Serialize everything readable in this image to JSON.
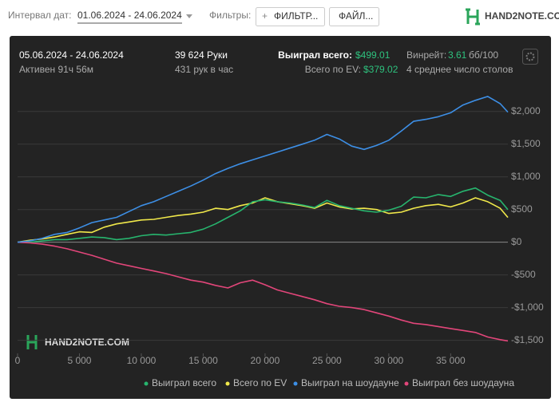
{
  "toolbar": {
    "date_label": "Интервал дат:",
    "date_range": "01.06.2024 - 24.06.2024",
    "filters_label": "Фильтры:",
    "filter_button": "ФИЛЬТР...",
    "file_button": "ФАЙЛ...",
    "logo": "HAND2NOTE.COM"
  },
  "summary": {
    "period": "05.06.2024 - 24.06.2024",
    "active": "Активен 91ч 56м",
    "hands": "39 624 Руки",
    "hands_per_hour": "431 рук в час",
    "won_label": "Выиграл всего:",
    "won_value": "$499.01",
    "ev_label": "Всего по EV:",
    "ev_value": "$379.02",
    "winrate_label": "Винрейт:",
    "winrate_value": "3.61",
    "winrate_unit": "бб/100",
    "tables": "4 среднее число столов"
  },
  "chart_data": {
    "type": "line",
    "watermark": "HAND2NOTE.COM",
    "x": [
      0,
      1000,
      2000,
      3000,
      4000,
      5000,
      6000,
      7000,
      8000,
      9000,
      10000,
      11000,
      12000,
      13000,
      14000,
      15000,
      16000,
      17000,
      18000,
      19000,
      20000,
      21000,
      22000,
      23000,
      24000,
      25000,
      26000,
      27000,
      28000,
      29000,
      30000,
      31000,
      32000,
      33000,
      34000,
      35000,
      36000,
      37000,
      38000,
      39000,
      39624
    ],
    "series": [
      {
        "name": "Выиграл всего",
        "color": "#27b56e",
        "values": [
          0,
          0,
          20,
          40,
          40,
          60,
          80,
          70,
          40,
          60,
          100,
          120,
          110,
          130,
          150,
          200,
          280,
          380,
          480,
          620,
          650,
          620,
          600,
          570,
          530,
          640,
          560,
          520,
          480,
          460,
          490,
          550,
          690,
          680,
          730,
          700,
          780,
          830,
          720,
          640,
          499
        ]
      },
      {
        "name": "Всего по EV",
        "color": "#f0e84a",
        "values": [
          0,
          30,
          50,
          80,
          120,
          160,
          150,
          230,
          280,
          310,
          340,
          350,
          380,
          410,
          430,
          460,
          520,
          500,
          560,
          600,
          680,
          620,
          590,
          560,
          520,
          600,
          540,
          510,
          520,
          500,
          440,
          460,
          520,
          560,
          580,
          540,
          600,
          680,
          620,
          520,
          379
        ]
      },
      {
        "name": "Выиграл на шоудауне",
        "color": "#3d8fe6",
        "values": [
          0,
          20,
          60,
          120,
          150,
          220,
          300,
          340,
          380,
          470,
          560,
          620,
          700,
          780,
          860,
          950,
          1050,
          1130,
          1200,
          1260,
          1320,
          1380,
          1440,
          1500,
          1560,
          1650,
          1580,
          1470,
          1420,
          1480,
          1560,
          1700,
          1850,
          1880,
          1920,
          1980,
          2100,
          2170,
          2230,
          2120,
          1990
        ]
      },
      {
        "name": "Выиграл без шоудауна",
        "color": "#e2467a",
        "values": [
          0,
          -10,
          -30,
          -60,
          -100,
          -150,
          -200,
          -260,
          -320,
          -360,
          -400,
          -440,
          -480,
          -530,
          -580,
          -610,
          -660,
          -700,
          -620,
          -580,
          -650,
          -730,
          -780,
          -830,
          -880,
          -940,
          -980,
          -1000,
          -1030,
          -1080,
          -1130,
          -1190,
          -1240,
          -1260,
          -1290,
          -1320,
          -1350,
          -1380,
          -1450,
          -1490,
          -1510
        ]
      }
    ],
    "xlim": [
      0,
      39624
    ],
    "xticks": [
      0,
      {
        "value": 5000,
        "label": "5 000"
      },
      {
        "value": 10000,
        "label": "10 000"
      },
      {
        "value": 15000,
        "label": "15 000"
      },
      {
        "value": 20000,
        "label": "20 000"
      },
      {
        "value": 25000,
        "label": "25 000"
      },
      {
        "value": 30000,
        "label": "30 000"
      },
      {
        "value": 35000,
        "label": "35 000"
      }
    ],
    "ylim": [
      -1700,
      2400
    ],
    "yticks": [
      {
        "value": -1500,
        "label": "-$1,500"
      },
      {
        "value": -1000,
        "label": "-$1,000"
      },
      {
        "value": -500,
        "label": "-$500"
      },
      {
        "value": 0,
        "label": "$0"
      },
      {
        "value": 500,
        "label": "$500"
      },
      {
        "value": 1000,
        "label": "$1,000"
      },
      {
        "value": 1500,
        "label": "$1,500"
      },
      {
        "value": 2000,
        "label": "$2,000"
      }
    ],
    "grid": true
  }
}
